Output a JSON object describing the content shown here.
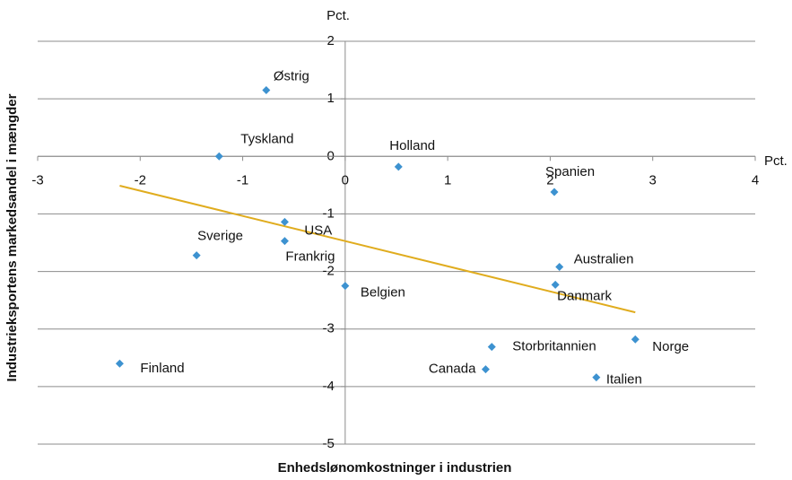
{
  "chart_data": {
    "type": "scatter",
    "x_axis_label": "Enhedslønomkostninger i industrien",
    "y_axis_label": "Industrieksportens markedsandel i mængder",
    "x_unit": "Pct.",
    "y_unit": "Pct.",
    "xlim": [
      -3,
      4
    ],
    "xticks": [
      -3,
      -2,
      -1,
      0,
      1,
      2,
      3,
      4
    ],
    "ylim": [
      -5,
      2
    ],
    "yticks": [
      2,
      1,
      0,
      -1,
      -2,
      -3,
      -4,
      -5
    ],
    "grid": true,
    "series": [
      {
        "color": "#3d92d0",
        "labels": [
          "Østrig",
          "Tyskland",
          "Holland",
          "Spanien",
          "USA",
          "Frankrig",
          "Sverige",
          "Australien",
          "Danmark",
          "Belgien",
          "Storbritannien",
          "Canada",
          "Norge",
          "Italien",
          "Finland"
        ],
        "x": [
          -0.77,
          -1.23,
          0.52,
          2.04,
          -0.59,
          -0.59,
          -1.45,
          2.09,
          2.05,
          0.0,
          1.43,
          1.37,
          2.83,
          2.45,
          -2.2
        ],
        "values": [
          1.15,
          0.0,
          -0.18,
          -0.62,
          -1.14,
          -1.47,
          -1.72,
          -1.92,
          -2.23,
          -2.25,
          -3.31,
          -3.7,
          -3.18,
          -3.84,
          -3.6
        ]
      }
    ],
    "trendline": {
      "color": "#e0ac1e",
      "x": [
        -2.2,
        2.83
      ],
      "values": [
        -0.51,
        -2.71
      ]
    }
  }
}
